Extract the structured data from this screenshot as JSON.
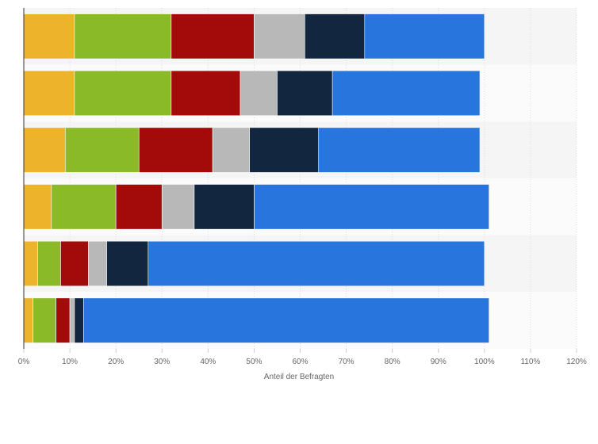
{
  "chart_data": {
    "type": "bar",
    "orientation": "horizontal",
    "stacked": true,
    "title": "",
    "xlabel": "Anteil der Befragten",
    "ylabel": "",
    "xlim": [
      0,
      120
    ],
    "x_ticks": [
      "0%",
      "10%",
      "20%",
      "30%",
      "40%",
      "50%",
      "60%",
      "70%",
      "80%",
      "90%",
      "100%",
      "110%",
      "120%"
    ],
    "grid": true,
    "legend": "none",
    "categories": [
      "",
      "",
      "",
      "",
      "",
      ""
    ],
    "series": [
      {
        "color": "#ecb32b",
        "values": [
          11,
          11,
          9,
          6,
          3,
          2
        ]
      },
      {
        "color": "#8aba28",
        "values": [
          21,
          21,
          16,
          14,
          5,
          5
        ]
      },
      {
        "color": "#a30a0a",
        "values": [
          18,
          15,
          16,
          10,
          6,
          3
        ]
      },
      {
        "color": "#b8b8b8",
        "values": [
          11,
          8,
          8,
          7,
          4,
          1
        ]
      },
      {
        "color": "#12263f",
        "values": [
          13,
          12,
          15,
          13,
          9,
          2
        ]
      },
      {
        "color": "#2876dd",
        "values": [
          26,
          32,
          35,
          51,
          73,
          88
        ]
      }
    ]
  }
}
